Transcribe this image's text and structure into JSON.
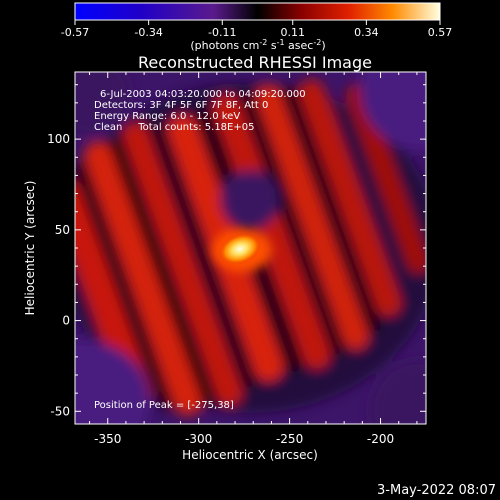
{
  "chart_data": {
    "type": "heatmap",
    "title": "Reconstructed RHESSI Image",
    "xlabel": "Heliocentric X (arcsec)",
    "ylabel": "Heliocentric Y (arcsec)",
    "xlim": [
      -368,
      -175
    ],
    "ylim": [
      -57,
      137
    ],
    "x_ticks": [
      -350,
      -300,
      -250,
      -200
    ],
    "y_ticks": [
      -50,
      0,
      50,
      100
    ],
    "colorbar": {
      "range": [
        -0.57,
        0.57
      ],
      "tick_values": [
        -0.57,
        -0.34,
        -0.11,
        0.11,
        0.34,
        0.57
      ],
      "tick_labels": [
        "-0.57",
        "-0.34",
        "-0.11",
        "0.11",
        "0.34",
        "0.57"
      ],
      "units_prefix": "(photons cm",
      "units_exp1": "-2",
      "units_mid": " s",
      "units_exp2": "-1",
      "units_mid2": " asec",
      "units_exp3": "-2",
      "units_suffix": ")"
    },
    "annotations": [
      "6-Jul-2003 04:03:20.000 to 04:09:20.000",
      "Detectors: 3F 4F 5F 6F 7F 8F, Att 0",
      "Energy Range: 6.0 - 12.0 keV",
      "Clean     Total counts: 5.18E+05"
    ],
    "peak_label": "Position of Peak = [-275,38]",
    "peak": [
      -275,
      38
    ]
  },
  "footer": {
    "timestamp": "3-May-2022 08:07"
  }
}
